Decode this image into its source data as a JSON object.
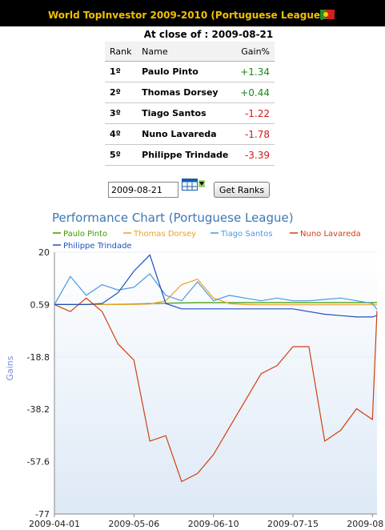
{
  "header": {
    "title": "World TopInvestor 2009-2010 (Portuguese League)"
  },
  "close": {
    "label": "At close of :",
    "date": "2009-08-21"
  },
  "table": {
    "columns": [
      "Rank",
      "Name",
      "Gain%"
    ],
    "rows": [
      {
        "rank": "1º",
        "name": "Paulo Pinto",
        "gain": "+1.34",
        "sign": "pos"
      },
      {
        "rank": "2º",
        "name": "Thomas Dorsey",
        "gain": "+0.44",
        "sign": "pos"
      },
      {
        "rank": "3º",
        "name": "Tiago Santos",
        "gain": "-1.22",
        "sign": "neg"
      },
      {
        "rank": "4º",
        "name": "Nuno Lavareda",
        "gain": "-1.78",
        "sign": "neg"
      },
      {
        "rank": "5º",
        "name": "Philippe Trindade",
        "gain": "-3.39",
        "sign": "neg"
      }
    ]
  },
  "controls": {
    "date_value": "2009-08-21",
    "button_label": "Get Ranks"
  },
  "chart_data": {
    "type": "line",
    "title": "Performance Chart (Portuguese League)",
    "ylabel": "Gains",
    "ylim": [
      -77,
      20
    ],
    "yticks": [
      "20",
      "0.59",
      "-18.8",
      "-38.2",
      "-57.6",
      "-77"
    ],
    "xticks": [
      "2009-04-01",
      "2009-05-06",
      "2009-06-10",
      "2009-07-15",
      "2009-08"
    ],
    "x": [
      "2009-04-01",
      "2009-04-08",
      "2009-04-15",
      "2009-04-22",
      "2009-04-29",
      "2009-05-06",
      "2009-05-13",
      "2009-05-20",
      "2009-05-27",
      "2009-06-03",
      "2009-06-10",
      "2009-06-17",
      "2009-06-24",
      "2009-07-01",
      "2009-07-08",
      "2009-07-15",
      "2009-07-22",
      "2009-07-29",
      "2009-08-05",
      "2009-08-12",
      "2009-08-19",
      "2009-08-21"
    ],
    "legend_position": "top",
    "colors": {
      "paulo": "#3a9a00",
      "thomas": "#f0a020",
      "tiago": "#4a98e0",
      "nuno": "#d04010",
      "philippe": "#2050c0"
    },
    "series": [
      {
        "name": "Paulo Pinto",
        "color": "#3a9a00",
        "values": [
          0.6,
          0.6,
          0.6,
          0.6,
          0.7,
          0.8,
          1.0,
          1.1,
          1.2,
          1.3,
          1.3,
          1.3,
          1.3,
          1.3,
          1.3,
          1.3,
          1.3,
          1.3,
          1.3,
          1.3,
          1.3,
          1.34
        ]
      },
      {
        "name": "Thomas Dorsey",
        "color": "#f0a020",
        "values": [
          0.6,
          0.6,
          0.6,
          0.6,
          0.6,
          0.7,
          0.8,
          2.0,
          8.0,
          10.0,
          3.0,
          1.0,
          0.6,
          0.5,
          0.5,
          0.5,
          0.5,
          0.5,
          0.5,
          0.5,
          0.5,
          0.44
        ]
      },
      {
        "name": "Tiago Santos",
        "color": "#4a98e0",
        "values": [
          0.6,
          11.0,
          4.0,
          8.0,
          6.0,
          7.0,
          12.0,
          4.0,
          2.0,
          9.0,
          2.0,
          4.0,
          3.0,
          2.0,
          3.0,
          2.0,
          2.0,
          2.5,
          3.0,
          2.0,
          1.0,
          -1.22
        ]
      },
      {
        "name": "Nuno Lavareda",
        "color": "#d04010",
        "values": [
          0.6,
          -2.0,
          3.0,
          -2.0,
          -14.0,
          -20.0,
          -50.0,
          -48.0,
          -65.0,
          -62.0,
          -55.0,
          -45.0,
          -35.0,
          -25.0,
          -22.0,
          -15.0,
          -15.0,
          -50.0,
          -46.0,
          -38.0,
          -42.0,
          -1.78
        ]
      },
      {
        "name": "Philippe Trindade",
        "color": "#2050c0",
        "values": [
          0.6,
          0.6,
          0.6,
          1.0,
          5.0,
          13.0,
          19.0,
          1.0,
          -1.0,
          -1.0,
          -1.0,
          -1.0,
          -1.0,
          -1.0,
          -1.0,
          -1.0,
          -2.0,
          -3.0,
          -3.5,
          -4.0,
          -4.0,
          -3.39
        ]
      }
    ]
  }
}
